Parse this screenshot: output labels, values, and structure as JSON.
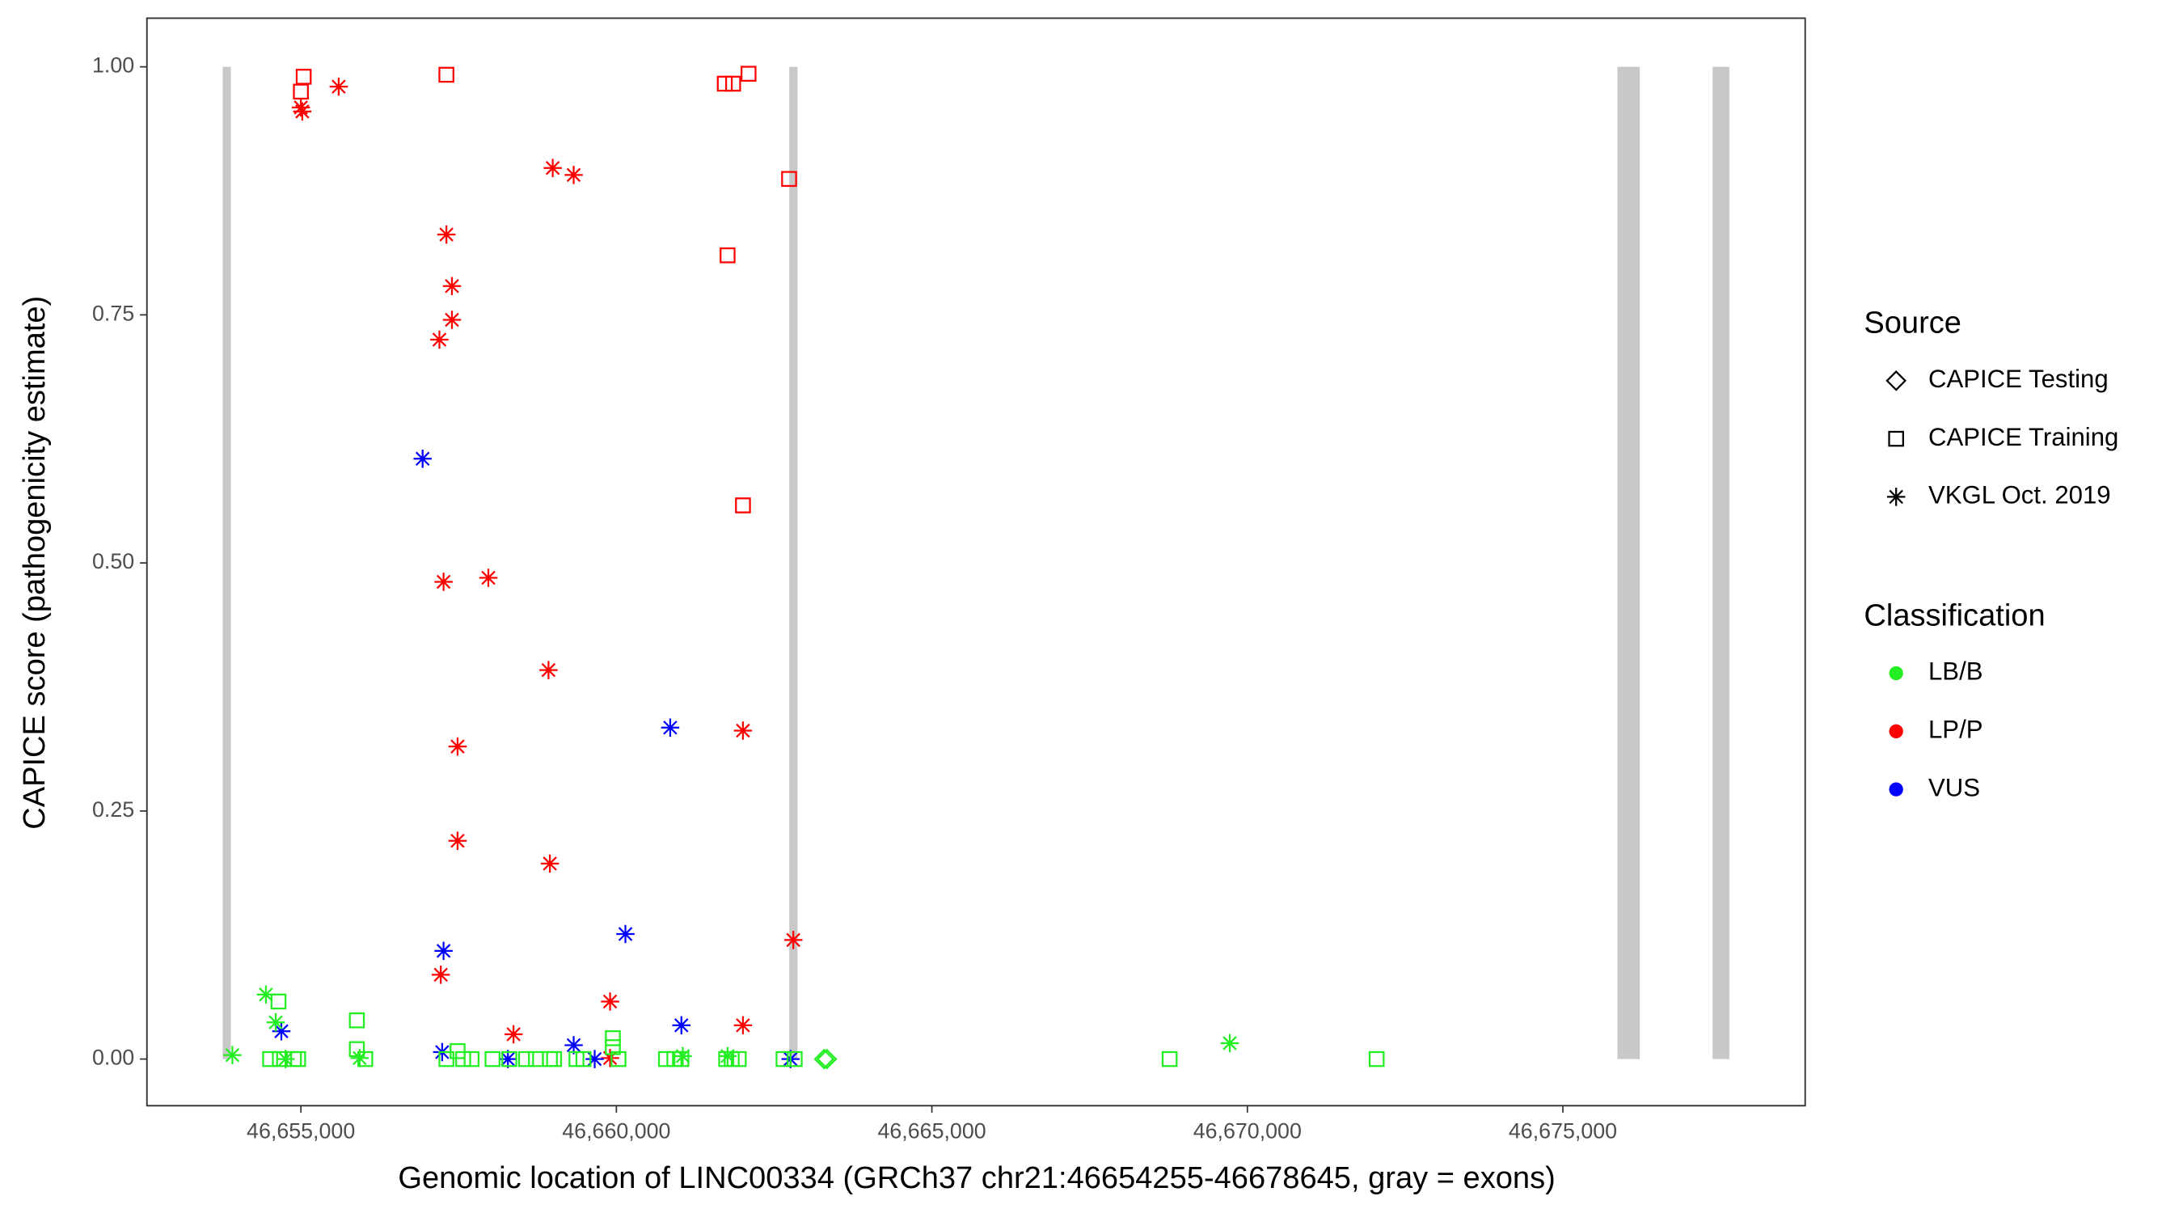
{
  "chart_data": {
    "type": "scatter",
    "x_label": "Genomic location of LINC00334 (GRCh37 chr21:46654255-46678645, gray = exons)",
    "y_label": "CAPICE score (pathogenicity estimate)",
    "xlim": [
      46652560,
      46678840
    ],
    "ylim": [
      -0.047,
      1.049
    ],
    "xticks": [
      {
        "value": 46655000,
        "label": "46,655,000"
      },
      {
        "value": 46660000,
        "label": "46,660,000"
      },
      {
        "value": 46665000,
        "label": "46,665,000"
      },
      {
        "value": 46670000,
        "label": "46,670,000"
      },
      {
        "value": 46675000,
        "label": "46,675,000"
      }
    ],
    "yticks": [
      {
        "value": 0,
        "label": "0.00"
      },
      {
        "value": 0.25,
        "label": "0.25"
      },
      {
        "value": 0.5,
        "label": "0.50"
      },
      {
        "value": 0.75,
        "label": "0.75"
      },
      {
        "value": 1,
        "label": "1.00"
      }
    ],
    "grid": false,
    "exon_color": "#c8c8c8",
    "exons": [
      {
        "start": 46653760,
        "end": 46653890
      },
      {
        "start": 46662740,
        "end": 46662870
      },
      {
        "start": 46675865,
        "end": 46676220
      },
      {
        "start": 46677373,
        "end": 46677639
      }
    ],
    "legend_source": {
      "title": "Source",
      "items": [
        {
          "label": "CAPICE Testing",
          "shape": "diamond"
        },
        {
          "label": "CAPICE Training",
          "shape": "square"
        },
        {
          "label": "VKGL Oct. 2019",
          "shape": "asterisk"
        }
      ]
    },
    "legend_classification": {
      "title": "Classification",
      "items": [
        {
          "label": "LB/B",
          "color": "#22ee22"
        },
        {
          "label": "LP/P",
          "color": "#ff0000"
        },
        {
          "label": "VUS",
          "color": "#0000ff"
        }
      ]
    },
    "series": [
      {
        "source": "VKGL Oct. 2019",
        "classification": "LP/P",
        "x": [
          46655000,
          46655022,
          46655599,
          46658991,
          46659323,
          46657306,
          46657394,
          46657394,
          46657195,
          46657261,
          46657971,
          46658924,
          46657483,
          46657483,
          46658946,
          46662006,
          46662804,
          46657217,
          46658370,
          46659900,
          46662006,
          46659900
        ],
        "values": [
          0.959,
          0.955,
          0.98,
          0.898,
          0.891,
          0.831,
          0.779,
          0.745,
          0.725,
          0.481,
          0.485,
          0.392,
          0.315,
          0.22,
          0.197,
          0.331,
          0.12,
          0.085,
          0.025,
          0.058,
          0.034,
          0.001
        ]
      },
      {
        "source": "CAPICE Training",
        "classification": "LP/P",
        "x": [
          46655044,
          46655000,
          46657306,
          46661718,
          46661850,
          46662094,
          46662737,
          46661762,
          46662006
        ],
        "values": [
          0.99,
          0.975,
          0.992,
          0.983,
          0.983,
          0.993,
          0.887,
          0.81,
          0.558
        ]
      },
      {
        "source": "VKGL Oct. 2019",
        "classification": "VUS",
        "x": [
          46656929,
          46660853,
          46660143,
          46657261,
          46654690,
          46661030,
          46659323,
          46657239,
          46658281,
          46659656,
          46662760
        ],
        "values": [
          0.605,
          0.334,
          0.126,
          0.109,
          0.028,
          0.034,
          0.014,
          0.007,
          0,
          0,
          0
        ]
      },
      {
        "source": "VKGL Oct. 2019",
        "classification": "LB/B",
        "x": [
          46654446,
          46654601,
          46653914,
          46669721,
          46655931,
          46654756,
          46661762,
          46661052
        ],
        "values": [
          0.065,
          0.037,
          0.004,
          0.016,
          0.001,
          0,
          0.003,
          0.003
        ]
      },
      {
        "source": "CAPICE Training",
        "classification": "LB/B",
        "x": [
          46654645,
          46655887,
          46655887,
          46659944,
          46659944,
          46657483,
          46654512,
          46654667,
          46654889,
          46654956,
          46656020,
          46657306,
          46657572,
          46657705,
          46658037,
          46658303,
          46658569,
          46658725,
          46658946,
          46659013,
          46659367,
          46659478,
          46660033,
          46660786,
          46660919,
          46661030,
          46661740,
          46661828,
          46661939,
          46662649,
          46662826,
          46668768,
          46672049
        ],
        "values": [
          0.058,
          0.039,
          0.01,
          0.021,
          0.012,
          0.008,
          0,
          0,
          0,
          0,
          0,
          0,
          0,
          0,
          0,
          0,
          0,
          0,
          0,
          0,
          0,
          0,
          0,
          0,
          0,
          0,
          0,
          0,
          0,
          0,
          0,
          0,
          0
        ]
      },
      {
        "source": "CAPICE Testing",
        "classification": "LB/B",
        "x": [
          46663292,
          46663336
        ],
        "values": [
          0,
          0
        ]
      }
    ]
  }
}
